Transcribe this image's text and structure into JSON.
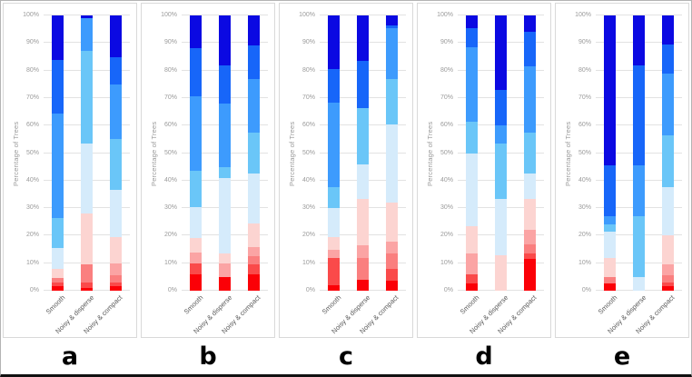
{
  "y_axis": {
    "label": "Percentage of Trees",
    "ticks": [
      "0%",
      "10%",
      "20%",
      "30%",
      "40%",
      "50%",
      "60%",
      "70%",
      "80%",
      "90%",
      "100%"
    ],
    "range": [
      0,
      100
    ],
    "grid": true
  },
  "categories": [
    "Smooth",
    "Noisy & disperse",
    "Noisy & compact"
  ],
  "palette": {
    "brightred": "#fb0007",
    "red": "#fa4a4a",
    "salmon": "#fa7f7f",
    "pink": "#fba4a4",
    "lightpink": "#fcd4d1",
    "paleblue": "#d5ebfb",
    "sky": "#6ac6f8",
    "azure": "#3d9bfd",
    "blue": "#1766f9",
    "darkblue": "#0b09e2"
  },
  "chart_data": [
    {
      "panel_label": "a",
      "type": "bar",
      "stacked": true,
      "ylabel": "Percentage of Trees",
      "categories": [
        "Smooth",
        "Noisy & disperse",
        "Noisy & compact"
      ],
      "bars": [
        {
          "category": "Smooth",
          "segments": [
            [
              "brightred",
              1.5
            ],
            [
              "red",
              1.5
            ],
            [
              "salmon",
              1.5
            ],
            [
              "lightpink",
              3.5
            ],
            [
              "paleblue",
              7.5
            ],
            [
              "sky",
              11
            ],
            [
              "azure",
              38
            ],
            [
              "blue",
              19.5
            ],
            [
              "darkblue",
              16
            ]
          ]
        },
        {
          "category": "Noisy & disperse",
          "segments": [
            [
              "brightred",
              1
            ],
            [
              "red",
              2
            ],
            [
              "salmon",
              6.5
            ],
            [
              "lightpink",
              18.5
            ],
            [
              "paleblue",
              25.5
            ],
            [
              "sky",
              33.5
            ],
            [
              "azure",
              12
            ],
            [
              "darkblue",
              1
            ]
          ]
        },
        {
          "category": "Noisy & compact",
          "segments": [
            [
              "brightred",
              1.5
            ],
            [
              "red",
              1.5
            ],
            [
              "salmon",
              2.5
            ],
            [
              "pink",
              4.5
            ],
            [
              "lightpink",
              9.5
            ],
            [
              "paleblue",
              17
            ],
            [
              "sky",
              18.5
            ],
            [
              "azure",
              20
            ],
            [
              "blue",
              10
            ],
            [
              "darkblue",
              15
            ]
          ]
        }
      ]
    },
    {
      "panel_label": "b",
      "type": "bar",
      "stacked": true,
      "ylabel": "Percentage of Trees",
      "categories": [
        "Smooth",
        "Noisy & disperse",
        "Noisy & compact"
      ],
      "bars": [
        {
          "category": "Smooth",
          "segments": [
            [
              "brightred",
              6
            ],
            [
              "red",
              4
            ],
            [
              "pink",
              4
            ],
            [
              "lightpink",
              5
            ],
            [
              "paleblue",
              11.5
            ],
            [
              "sky",
              13
            ],
            [
              "azure",
              27
            ],
            [
              "blue",
              17.5
            ],
            [
              "darkblue",
              12
            ]
          ]
        },
        {
          "category": "Noisy & disperse",
          "segments": [
            [
              "brightred",
              5
            ],
            [
              "pink",
              5
            ],
            [
              "lightpink",
              3.5
            ],
            [
              "paleblue",
              27.5
            ],
            [
              "sky",
              4
            ],
            [
              "azure",
              23
            ],
            [
              "blue",
              14
            ],
            [
              "darkblue",
              18
            ]
          ]
        },
        {
          "category": "Noisy & compact",
          "segments": [
            [
              "brightred",
              6
            ],
            [
              "red",
              3.5
            ],
            [
              "salmon",
              3
            ],
            [
              "pink",
              3.5
            ],
            [
              "lightpink",
              8.5
            ],
            [
              "paleblue",
              18
            ],
            [
              "sky",
              15
            ],
            [
              "azure",
              19.5
            ],
            [
              "blue",
              12
            ],
            [
              "darkblue",
              11
            ]
          ]
        }
      ]
    },
    {
      "panel_label": "c",
      "type": "bar",
      "stacked": true,
      "ylabel": "Percentage of Trees",
      "categories": [
        "Smooth",
        "Noisy & disperse",
        "Noisy & compact"
      ],
      "bars": [
        {
          "category": "Smooth",
          "segments": [
            [
              "brightred",
              2
            ],
            [
              "red",
              10
            ],
            [
              "pink",
              3
            ],
            [
              "lightpink",
              4.5
            ],
            [
              "paleblue",
              10.5
            ],
            [
              "sky",
              7.5
            ],
            [
              "azure",
              31
            ],
            [
              "blue",
              12
            ],
            [
              "darkblue",
              19.5
            ]
          ]
        },
        {
          "category": "Noisy & disperse",
          "segments": [
            [
              "brightred",
              4
            ],
            [
              "salmon",
              8
            ],
            [
              "pink",
              4.5
            ],
            [
              "lightpink",
              17
            ],
            [
              "paleblue",
              12.5
            ],
            [
              "sky",
              20.5
            ],
            [
              "blue",
              17
            ],
            [
              "darkblue",
              16.5
            ]
          ]
        },
        {
          "category": "Noisy & compact",
          "segments": [
            [
              "brightred",
              3.5
            ],
            [
              "red",
              4.5
            ],
            [
              "salmon",
              5.5
            ],
            [
              "pink",
              4.5
            ],
            [
              "lightpink",
              14
            ],
            [
              "paleblue",
              28.5
            ],
            [
              "sky",
              16.5
            ],
            [
              "azure",
              18.5
            ],
            [
              "blue",
              1
            ],
            [
              "darkblue",
              3.5
            ]
          ]
        }
      ]
    },
    {
      "panel_label": "d",
      "type": "bar",
      "stacked": true,
      "ylabel": "Percentage of Trees",
      "categories": [
        "Smooth",
        "Noisy & disperse",
        "Noisy & compact"
      ],
      "bars": [
        {
          "category": "Smooth",
          "segments": [
            [
              "brightred",
              2.5
            ],
            [
              "red",
              3.5
            ],
            [
              "pink",
              7.5
            ],
            [
              "lightpink",
              10
            ],
            [
              "paleblue",
              26.5
            ],
            [
              "sky",
              11.5
            ],
            [
              "azure",
              27
            ],
            [
              "blue",
              7
            ],
            [
              "darkblue",
              4.5
            ]
          ]
        },
        {
          "category": "Noisy & disperse",
          "segments": [
            [
              "lightpink",
              13
            ],
            [
              "paleblue",
              20.5
            ],
            [
              "sky",
              20
            ],
            [
              "azure",
              6.5
            ],
            [
              "blue",
              13
            ],
            [
              "darkblue",
              27
            ]
          ]
        },
        {
          "category": "Noisy & compact",
          "segments": [
            [
              "brightred",
              11.5
            ],
            [
              "red",
              2
            ],
            [
              "salmon",
              3.5
            ],
            [
              "pink",
              5
            ],
            [
              "lightpink",
              11.5
            ],
            [
              "paleblue",
              9
            ],
            [
              "sky",
              15
            ],
            [
              "azure",
              24
            ],
            [
              "blue",
              12.5
            ],
            [
              "darkblue",
              6
            ]
          ]
        }
      ]
    },
    {
      "panel_label": "e",
      "type": "bar",
      "stacked": true,
      "ylabel": "Percentage of Trees",
      "categories": [
        "Smooth",
        "Noisy & disperse",
        "Noisy & compact"
      ],
      "bars": [
        {
          "category": "Smooth",
          "segments": [
            [
              "brightred",
              2.5
            ],
            [
              "salmon",
              2.5
            ],
            [
              "lightpink",
              7
            ],
            [
              "paleblue",
              9.5
            ],
            [
              "sky",
              2.5
            ],
            [
              "azure",
              3
            ],
            [
              "blue",
              18.5
            ],
            [
              "darkblue",
              54.5
            ]
          ]
        },
        {
          "category": "Noisy & disperse",
          "segments": [
            [
              "paleblue",
              5
            ],
            [
              "sky",
              22
            ],
            [
              "azure",
              18.5
            ],
            [
              "blue",
              36.5
            ],
            [
              "darkblue",
              18
            ]
          ]
        },
        {
          "category": "Noisy & compact",
          "segments": [
            [
              "brightred",
              1.5
            ],
            [
              "red",
              1.5
            ],
            [
              "salmon",
              2.5
            ],
            [
              "pink",
              4
            ],
            [
              "lightpink",
              10.5
            ],
            [
              "paleblue",
              17.5
            ],
            [
              "sky",
              19
            ],
            [
              "azure",
              22.5
            ],
            [
              "blue",
              10.5
            ],
            [
              "darkblue",
              10.5
            ]
          ]
        }
      ]
    }
  ]
}
